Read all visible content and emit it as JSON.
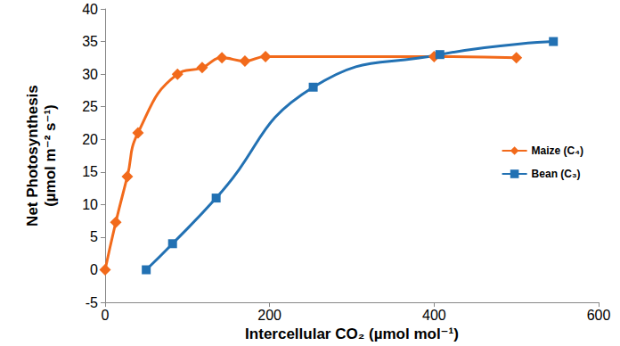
{
  "chart_data": {
    "type": "line",
    "x_label": "Intercellular CO₂ (µmol mol⁻¹)",
    "y_label": "Net Photosynthesis\n(µmol m⁻² s⁻¹)",
    "xlim": [
      0,
      600
    ],
    "xticks": [
      0,
      200,
      400,
      600
    ],
    "ylim": [
      -5,
      40
    ],
    "yticks": [
      -5,
      0,
      5,
      10,
      15,
      20,
      25,
      30,
      35,
      40
    ],
    "grid": false,
    "legend": "right",
    "series": [
      {
        "name": "Maize (C₄)",
        "color": "#f26a1b",
        "marker": "diamond",
        "x": [
          0,
          13,
          27,
          40,
          88,
          118,
          142,
          170,
          195,
          400,
          500
        ],
        "values": [
          0,
          7.3,
          14.3,
          21,
          30,
          31,
          32.5,
          32,
          32.7,
          32.7,
          32.5
        ]
      },
      {
        "name": "Bean (C₃)",
        "color": "#2271b3",
        "marker": "square",
        "x": [
          50,
          82,
          135,
          253,
          407,
          545
        ],
        "values": [
          0,
          4,
          11,
          28,
          33,
          35
        ]
      }
    ]
  }
}
